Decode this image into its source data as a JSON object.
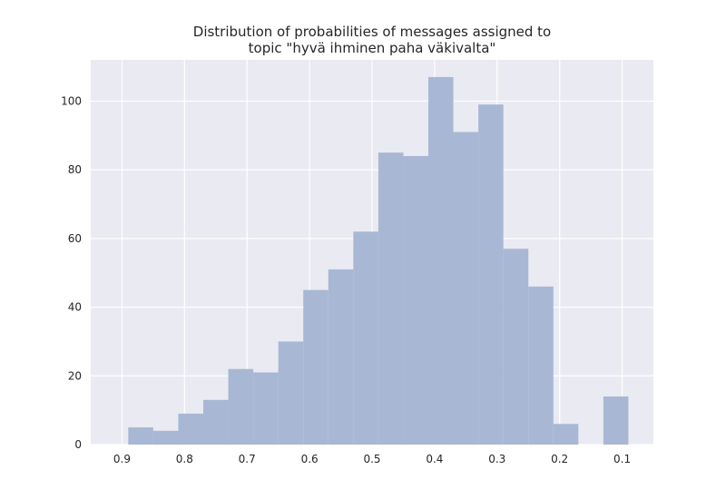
{
  "chart_data": {
    "type": "bar",
    "title_line1": "Distribution of probabilities of messages assigned to",
    "title_line2": "topic \"hyvä ihminen paha väkivalta\"",
    "xlabel": "",
    "ylabel": "",
    "x_axis_reversed": true,
    "xlim": [
      0.95,
      0.05
    ],
    "ylim": [
      0,
      112
    ],
    "x_ticks": [
      "0.9",
      "0.8",
      "0.7",
      "0.6",
      "0.5",
      "0.4",
      "0.3",
      "0.2",
      "0.1"
    ],
    "y_ticks": [
      "0",
      "20",
      "40",
      "60",
      "80",
      "100"
    ],
    "grid": true,
    "bin_width": 0.04,
    "bins": [
      {
        "start": 0.85,
        "count": 5
      },
      {
        "start": 0.81,
        "count": 4
      },
      {
        "start": 0.77,
        "count": 9
      },
      {
        "start": 0.73,
        "count": 13
      },
      {
        "start": 0.69,
        "count": 22
      },
      {
        "start": 0.65,
        "count": 21
      },
      {
        "start": 0.61,
        "count": 30
      },
      {
        "start": 0.57,
        "count": 45
      },
      {
        "start": 0.53,
        "count": 51
      },
      {
        "start": 0.49,
        "count": 62
      },
      {
        "start": 0.45,
        "count": 85
      },
      {
        "start": 0.41,
        "count": 84
      },
      {
        "start": 0.37,
        "count": 107
      },
      {
        "start": 0.33,
        "count": 91
      },
      {
        "start": 0.29,
        "count": 99
      },
      {
        "start": 0.25,
        "count": 57
      },
      {
        "start": 0.21,
        "count": 46
      },
      {
        "start": 0.17,
        "count": 6
      },
      {
        "start": 0.13,
        "count": 0
      },
      {
        "start": 0.09,
        "count": 14
      }
    ],
    "colors": {
      "bar": "#a8b7d4",
      "plot_bg": "#eaeaf2",
      "grid": "#ffffff",
      "text": "#262626"
    }
  }
}
